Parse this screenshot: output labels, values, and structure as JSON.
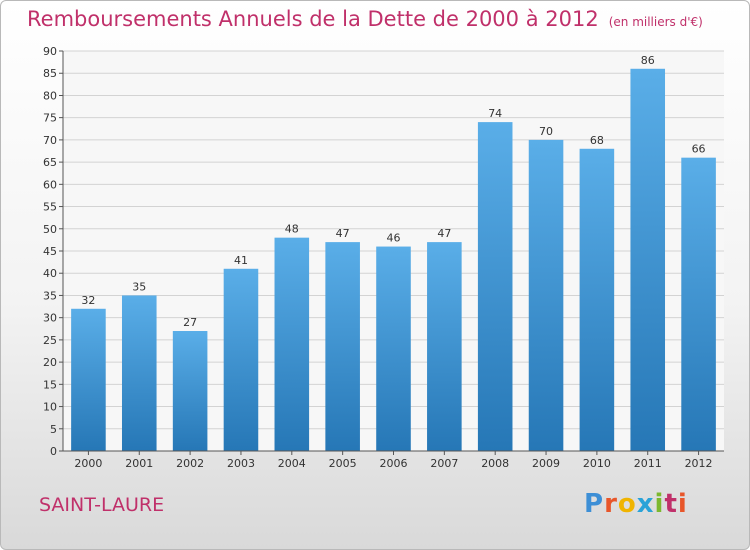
{
  "header": {
    "title": "Remboursements Annuels de la Dette de 2000 à 2012",
    "subtitle": "(en milliers d'€)"
  },
  "footer": {
    "commune": "SAINT-LAURE",
    "logo": "Proxiti",
    "logo_colors": [
      "#3d8fd6",
      "#e8562a",
      "#f0b400",
      "#2aa3d8",
      "#7cb82f",
      "#c0306a",
      "#e8562a"
    ]
  },
  "chart_data": {
    "type": "bar",
    "title": "Remboursements Annuels de la Dette de 2000 à 2012",
    "categories": [
      "2000",
      "2001",
      "2002",
      "2003",
      "2004",
      "2005",
      "2006",
      "2007",
      "2008",
      "2009",
      "2010",
      "2011",
      "2012"
    ],
    "values": [
      32,
      35,
      27,
      41,
      48,
      47,
      46,
      47,
      74,
      70,
      68,
      86,
      66
    ],
    "ylim": [
      0,
      90
    ],
    "yticks": [
      0,
      5,
      10,
      15,
      20,
      25,
      30,
      35,
      40,
      45,
      50,
      55,
      60,
      65,
      70,
      75,
      80,
      85,
      90
    ],
    "grid": true,
    "bar_color_top": "#5aaee8",
    "bar_color_bottom": "#2677b6",
    "title_color": "#c0306a"
  }
}
